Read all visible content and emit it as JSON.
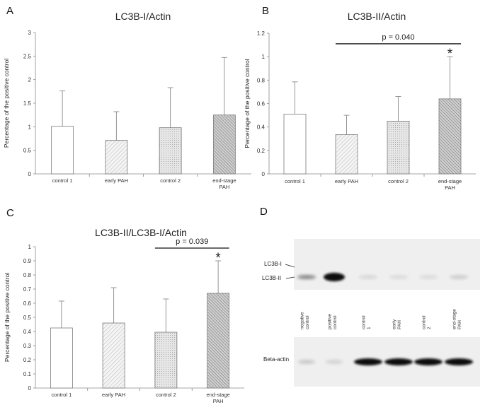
{
  "panels": {
    "a": "A",
    "b": "B",
    "c": "C",
    "d": "D"
  },
  "chart_data": [
    {
      "type": "bar",
      "title": "LC3B-I/Actin",
      "ylabel": "Percentage of the positive control",
      "categories": [
        "control 1",
        "early PAH",
        "control 2",
        "end-stage PAH"
      ],
      "values": [
        1.01,
        0.71,
        0.98,
        1.25
      ],
      "error_upper": [
        0.75,
        0.61,
        0.85,
        1.22
      ],
      "ylim": [
        0,
        3
      ],
      "yticks": [
        "0",
        "0.5",
        "1",
        "1.5",
        "2",
        "2.5",
        "3"
      ],
      "grid": false,
      "bar_fills": [
        "white",
        "light-hatch",
        "dotted",
        "dark-hatch"
      ]
    },
    {
      "type": "bar",
      "title": "LC3B-II/Actin",
      "ylabel": "Percentage of the positive control",
      "categories": [
        "control 1",
        "early PAH",
        "control 2",
        "end-stage PAH"
      ],
      "values": [
        0.51,
        0.335,
        0.45,
        0.64
      ],
      "error_upper": [
        0.275,
        0.165,
        0.21,
        0.36
      ],
      "ylim": [
        0,
        1.2
      ],
      "yticks": [
        "0",
        "0.2",
        "0.4",
        "0.6",
        "0.8",
        "1",
        "1.2"
      ],
      "grid": false,
      "annotation": {
        "text": "p = 0.040",
        "from": "early PAH",
        "to": "end-stage PAH",
        "level": 1.11
      },
      "significance": {
        "category": "end-stage PAH",
        "marker": "*"
      }
    },
    {
      "type": "bar",
      "title": "LC3B-II/LC3B-I/Actin",
      "ylabel": "Percentage of the positive control",
      "categories": [
        "control 1",
        "early PAH",
        "control 2",
        "end-stage PAH"
      ],
      "values": [
        0.425,
        0.46,
        0.395,
        0.67
      ],
      "error_upper": [
        0.19,
        0.25,
        0.235,
        0.23
      ],
      "ylim": [
        0,
        1
      ],
      "yticks": [
        "0",
        "0.1",
        "0.2",
        "0.3",
        "0.4",
        "0.5",
        "0.6",
        "0.7",
        "0.8",
        "0.9",
        "1"
      ],
      "grid": false,
      "annotation": {
        "text": "p = 0.039",
        "from": "control 2",
        "to": "end-stage PAH",
        "level": 0.99
      },
      "significance": {
        "category": "end-stage PAH",
        "marker": "*"
      }
    }
  ],
  "blot": {
    "band_labels": [
      "LC3B-I",
      "LC3B-II"
    ],
    "lanes": [
      "negative control",
      "positive control",
      "control 1",
      "early PAH",
      "control 2",
      "end-stage PAH"
    ],
    "loading_label": "Beta-actin",
    "lc3_intensity": [
      0.55,
      1.0,
      0.12,
      0.1,
      0.1,
      0.18
    ],
    "actin_intensity": [
      0.2,
      0.15,
      1.0,
      1.0,
      1.0,
      1.0
    ]
  }
}
